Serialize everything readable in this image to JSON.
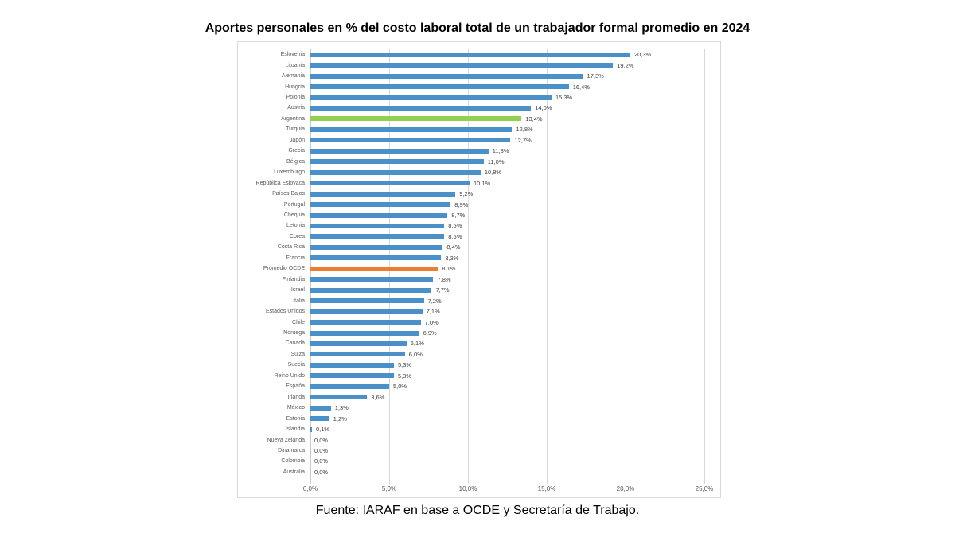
{
  "source_note": "Fuente: IARAF en base a OCDE y Secretaría de Trabajo.",
  "chart_data": {
    "type": "bar",
    "orientation": "horizontal",
    "title": "Aportes personales en % del costo laboral total de un trabajador formal promedio en 2024",
    "xlabel": "",
    "ylabel": "",
    "xlim": [
      0,
      25
    ],
    "grid": true,
    "legend": false,
    "x_ticks": [
      "0,0%",
      "5,0%",
      "10,0%",
      "15,0%",
      "20,0%",
      "25,0%"
    ],
    "x_tick_values": [
      0,
      5,
      10,
      15,
      20,
      25
    ],
    "categories": [
      "Eslovenia",
      "Lituania",
      "Alemania",
      "Hungría",
      "Polonia",
      "Austria",
      "Argentina",
      "Turquía",
      "Japón",
      "Grecia",
      "Bélgica",
      "Luxemburgo",
      "República Eslovaca",
      "Países Bajos",
      "Portugal",
      "Chequia",
      "Letonia",
      "Corea",
      "Costa Rica",
      "Francia",
      "Promedio OCDE",
      "Finlandia",
      "Israel",
      "Italia",
      "Estados Unidos",
      "Chile",
      "Noruega",
      "Canadá",
      "Suiza",
      "Suecia",
      "Reino Unido",
      "España",
      "Irlanda",
      "México",
      "Estonia",
      "Islandia",
      "Nueva Zelanda",
      "Dinamarca",
      "Colombia",
      "Australia"
    ],
    "values": [
      20.3,
      19.2,
      17.3,
      16.4,
      15.3,
      14.0,
      13.4,
      12.8,
      12.7,
      11.3,
      11.0,
      10.8,
      10.1,
      9.2,
      8.9,
      8.7,
      8.5,
      8.5,
      8.4,
      8.3,
      8.1,
      7.8,
      7.7,
      7.2,
      7.1,
      7.0,
      6.9,
      6.1,
      6.0,
      5.3,
      5.3,
      5.0,
      3.6,
      1.3,
      1.2,
      0.1,
      0.0,
      0.0,
      0.0,
      0.0
    ],
    "value_labels": [
      "20,3%",
      "19,2%",
      "17,3%",
      "16,4%",
      "15,3%",
      "14,0%",
      "13,4%",
      "12,8%",
      "12,7%",
      "11,3%",
      "11,0%",
      "10,8%",
      "10,1%",
      "9,2%",
      "8,9%",
      "8,7%",
      "8,5%",
      "8,5%",
      "8,4%",
      "8,3%",
      "8,1%",
      "7,8%",
      "7,7%",
      "7,2%",
      "7,1%",
      "7,0%",
      "6,9%",
      "6,1%",
      "6,0%",
      "5,3%",
      "5,3%",
      "5,0%",
      "3,6%",
      "1,3%",
      "1,2%",
      "0,1%",
      "0,0%",
      "0,0%",
      "0,0%",
      "0,0%"
    ],
    "colors": {
      "bar_default": "#4A90C9",
      "bar_argentina": "#92D050",
      "bar_promedio_ocde": "#ED7D31",
      "gridline": "#D9D9D9",
      "axis_line": "#C9C9C9",
      "chart_border": "#D9D9D9",
      "category_text": "#595959",
      "value_text": "#404040",
      "axis_text": "#595959",
      "title_text": "#000000"
    },
    "highlighted_bars": {
      "Argentina": "#92D050",
      "Promedio OCDE": "#ED7D31"
    }
  }
}
